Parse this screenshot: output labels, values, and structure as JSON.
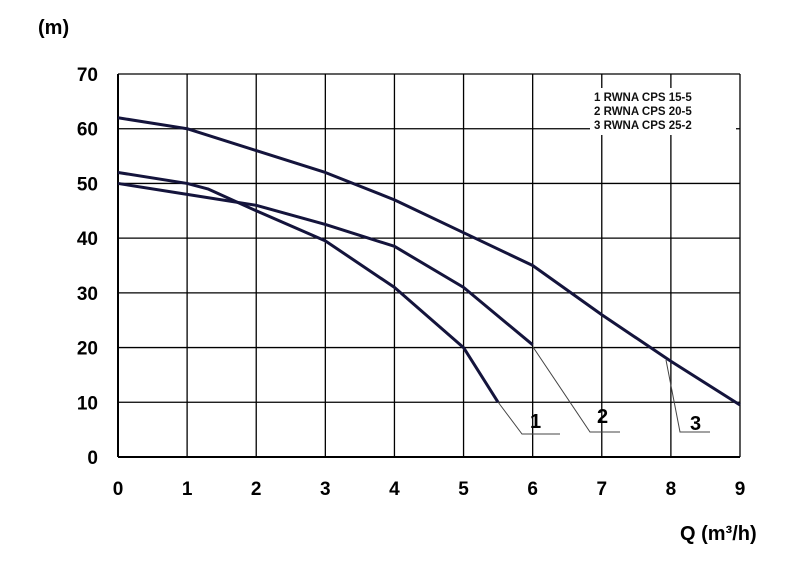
{
  "chart_data": {
    "type": "line",
    "title": "",
    "xlabel": "Q (m³/h)",
    "ylabel": "(m)",
    "xlim": [
      0,
      9
    ],
    "ylim": [
      0,
      70
    ],
    "x_ticks": [
      "0",
      "1",
      "2",
      "3",
      "4",
      "5",
      "6",
      "7",
      "8",
      "9"
    ],
    "y_ticks": [
      "0",
      "10",
      "20",
      "30",
      "40",
      "50",
      "60",
      "70"
    ],
    "grid": true,
    "legend_position": "top-right",
    "legend": [
      "1 RWNA CPS 15-5",
      "2 RWNA CPS 20-5",
      "3 RWNA CPS 25-2"
    ],
    "line_color": "#14143c",
    "series": [
      {
        "name": "1",
        "points": [
          [
            0,
            52
          ],
          [
            1,
            50
          ],
          [
            1.3,
            49
          ],
          [
            2,
            45
          ],
          [
            3,
            39.5
          ],
          [
            4,
            31
          ],
          [
            5,
            20
          ],
          [
            5.5,
            10
          ]
        ]
      },
      {
        "name": "2",
        "points": [
          [
            0,
            50
          ],
          [
            1,
            48
          ],
          [
            2,
            46
          ],
          [
            3,
            42.5
          ],
          [
            4,
            38.5
          ],
          [
            5,
            31
          ],
          [
            6,
            20.5
          ]
        ]
      },
      {
        "name": "3",
        "points": [
          [
            0,
            62
          ],
          [
            1,
            60
          ],
          [
            2,
            56
          ],
          [
            3,
            52
          ],
          [
            4,
            47
          ],
          [
            5,
            41
          ],
          [
            6,
            35
          ],
          [
            7,
            26
          ],
          [
            8,
            17.5
          ],
          [
            9,
            9.5
          ]
        ]
      }
    ]
  }
}
